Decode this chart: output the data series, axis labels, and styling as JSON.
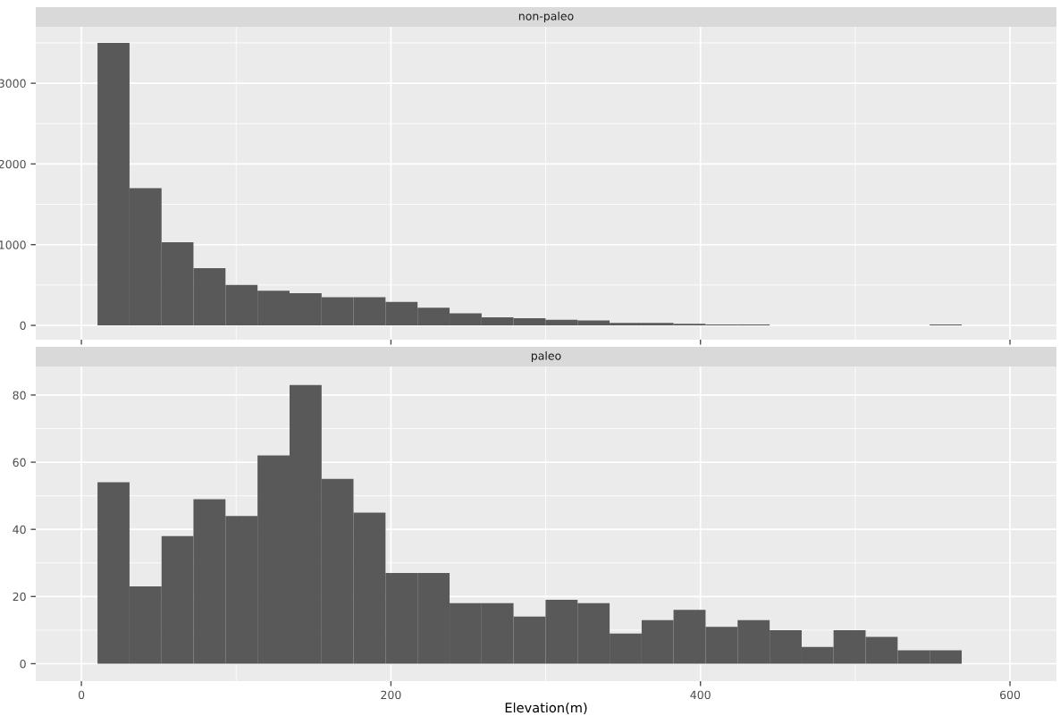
{
  "chart_data": [
    {
      "type": "histogram",
      "title": "non-paleo",
      "color": "#595959",
      "bins": [
        10.4,
        31.1,
        51.8,
        72.4,
        93.1,
        113.8,
        134.5,
        155.2,
        175.8,
        196.5,
        217.2,
        237.9,
        258.6,
        279.2,
        299.9,
        320.6,
        341.3,
        362.0,
        382.6,
        403.3,
        424.0,
        444.7,
        465.4,
        486.0,
        506.7,
        527.4,
        548.1,
        568.8
      ],
      "values": [
        3500,
        1700,
        1030,
        710,
        500,
        430,
        400,
        350,
        350,
        290,
        220,
        150,
        100,
        90,
        70,
        60,
        30,
        30,
        20,
        10,
        10,
        0,
        0,
        0,
        0,
        0,
        10
      ],
      "xlim": [
        -29.5,
        630
      ],
      "xticks": [
        0,
        200,
        400,
        600
      ],
      "ylim": [
        -177,
        3699
      ],
      "yticks": [
        0,
        1000,
        2000,
        3000
      ],
      "grid": true,
      "tick_labels": "y"
    },
    {
      "type": "histogram",
      "title": "paleo",
      "xlabel": "Elevation(m)",
      "color": "#595959",
      "bins": [
        10.4,
        31.1,
        51.8,
        72.4,
        93.1,
        113.8,
        134.5,
        155.2,
        175.8,
        196.5,
        217.2,
        237.9,
        258.6,
        279.2,
        299.9,
        320.6,
        341.3,
        362.0,
        382.6,
        403.3,
        424.0,
        444.7,
        465.4,
        486.0,
        506.7,
        527.4,
        548.1,
        568.8
      ],
      "values": [
        54,
        23,
        38,
        49,
        44,
        62,
        83,
        55,
        45,
        27,
        27,
        18,
        18,
        14,
        19,
        18,
        9,
        13,
        16,
        11,
        13,
        10,
        5,
        10,
        8,
        4,
        4
      ],
      "xlim": [
        -29.5,
        630
      ],
      "xticks": [
        0,
        200,
        400,
        600
      ],
      "ylim": [
        -5.2,
        88.5
      ],
      "yticks": [
        0,
        20,
        40,
        60,
        80
      ],
      "grid": true
    }
  ]
}
